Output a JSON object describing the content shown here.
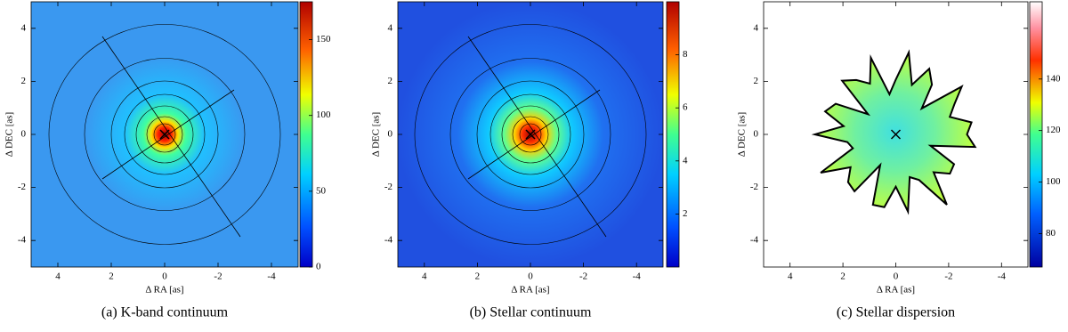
{
  "chart_data": [
    {
      "type": "heatmap",
      "caption": "(a) K-band continuum",
      "xlabel": "Δ RA [as]",
      "ylabel": "Δ DEC [as]",
      "xlim": [
        5,
        -5
      ],
      "ylim": [
        -5,
        5
      ],
      "xticks": [
        4,
        2,
        0,
        -2,
        -4
      ],
      "yticks": [
        -4,
        -2,
        0,
        2,
        4
      ],
      "clim": [
        0,
        175
      ],
      "cticks": [
        0,
        50,
        100,
        150
      ]
    },
    {
      "type": "heatmap",
      "caption": "(b) Stellar continuum",
      "xlabel": "Δ RA [as]",
      "ylabel": "Δ DEC [as]",
      "xlim": [
        5,
        -5
      ],
      "ylim": [
        -5,
        5
      ],
      "xticks": [
        4,
        2,
        0,
        -2,
        -4
      ],
      "yticks": [
        -4,
        -2,
        0,
        2,
        4
      ],
      "clim": [
        0,
        10
      ],
      "cticks": [
        2,
        4,
        6,
        8
      ]
    },
    {
      "type": "heatmap",
      "caption": "(c) Stellar dispersion",
      "xlabel": "Δ RA [as]",
      "ylabel": "Δ DEC [as]",
      "xlim": [
        5,
        -5
      ],
      "ylim": [
        -5,
        5
      ],
      "xticks": [
        4,
        2,
        0,
        -2,
        -4
      ],
      "yticks": [
        -4,
        -2,
        0,
        2,
        4
      ],
      "clim": [
        67,
        170
      ],
      "cticks": [
        80,
        100,
        120,
        140
      ]
    }
  ]
}
